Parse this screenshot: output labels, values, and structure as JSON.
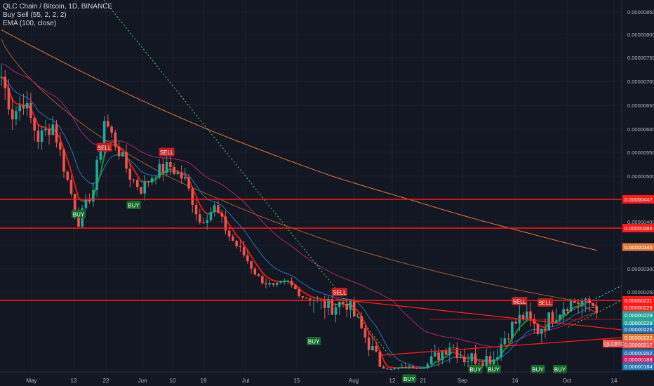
{
  "legend": {
    "symbol_line": "QLC Chain / Bitcoin, 1D, BINANCE",
    "indicator1": "Buy Sell  (55, 2, 2, 2)",
    "indicator2": "EMA (100, close)"
  },
  "colors": {
    "background": "#131722",
    "grid": "#1e222d",
    "up": "#26a69a",
    "down": "#ef5350",
    "hline": "#ff1a1a",
    "ema100": "#e0793a",
    "ema_mid": "#a6266f",
    "ema_fast": "#2376b5",
    "signal_red": "#d01a1a",
    "signal_green": "#1a8a2a",
    "dotted_green": "#3fbf4f",
    "dotted_cyan": "#4fc3f7",
    "axis_text": "#b2b5be"
  },
  "chart_data": {
    "type": "candlestick",
    "title": "QLC Chain / Bitcoin, 1D, BINANCE",
    "x_axis_labels": [
      "May",
      "13",
      "22",
      "Jun",
      "10",
      "19",
      "Jul",
      "15",
      "Aug",
      "12",
      "21",
      "Sep",
      "16",
      "Oct",
      "14"
    ],
    "y_ticks": [
      "0.00000850",
      "0.00000800",
      "0.00000750",
      "0.00000700",
      "0.00000650",
      "0.00000600",
      "0.00000550",
      "0.00000500",
      "0.00000400",
      "0.00000350",
      "0.00000300",
      "0.00000250"
    ],
    "y_tick_values": [
      8.5e-06,
      8e-06,
      7.5e-06,
      7e-06,
      6.5e-06,
      6e-06,
      5.5e-06,
      5e-06,
      4e-06,
      3.5e-06,
      3e-06,
      2.5e-06
    ],
    "ylim": [
      1.15e-06,
      9.1e-06
    ],
    "horizontal_levels": [
      {
        "label": "0.00000447",
        "value": 4.47e-06
      },
      {
        "label": "0.00000386",
        "value": 3.86e-06
      },
      {
        "label": "0.00000231",
        "value": 2.31e-06
      }
    ],
    "price_tags": [
      {
        "label": "0.00000346",
        "value": 3.46e-06,
        "color": "#e0793a"
      },
      {
        "label": "0.00000229",
        "value": 2.29e-06,
        "color": "#ff1a1a"
      },
      {
        "label": "0.00000229",
        "value": 2.29e-06,
        "color": "#26a69a"
      },
      {
        "label": "0.00000228",
        "value": 2.28e-06,
        "color": "#26a69a"
      },
      {
        "label": "0.00000225",
        "value": 2.25e-06,
        "color": "#2376b5"
      },
      {
        "label": "0.00000222",
        "value": 2.22e-06,
        "color": "#e0793a"
      },
      {
        "label": "0.00000217",
        "value": 2.17e-06,
        "color": "#ef5350"
      },
      {
        "label": "0.00000202",
        "value": 2.02e-06,
        "color": "#2376b5"
      },
      {
        "label": "0.00000188",
        "value": 1.88e-06,
        "color": "#d81b60"
      },
      {
        "label": "0.00000184",
        "value": 1.84e-06,
        "color": "#2376b5"
      }
    ],
    "ticker_tag": "QLCBTC",
    "signals": [
      {
        "label": "SELL",
        "type": "sell",
        "day": 28,
        "value": 5.4e-06
      },
      {
        "label": "SELL",
        "type": "sell",
        "day": 45,
        "value": 5.3e-06
      },
      {
        "label": "SELL",
        "type": "sell",
        "day": 92,
        "value": 2.3e-06
      },
      {
        "label": "SELL",
        "type": "sell",
        "day": 123,
        "value": 2.05e-05
      },
      {
        "label": "SELL",
        "type": "sell",
        "day": 130,
        "value": 2.09e-05
      },
      {
        "label": "SELL",
        "type": "sell",
        "day": 141,
        "value": 2.235e-06
      },
      {
        "label": "SELL",
        "type": "sell",
        "day": 148,
        "value": 2.225e-06
      },
      {
        "label": "BUY",
        "type": "buy",
        "day": 21,
        "value": 4.4e-06
      },
      {
        "label": "BUY",
        "type": "buy",
        "day": 36,
        "value": 4.6e-06
      },
      {
        "label": "BUY",
        "type": "buy",
        "day": 85,
        "value": 2.1e-06
      },
      {
        "label": "BUY",
        "type": "buy",
        "day": 111,
        "value": 1.8e-06
      },
      {
        "label": "BUY",
        "type": "buy",
        "day": 129,
        "value": 1.9e-06
      },
      {
        "label": "BUY",
        "type": "buy",
        "day": 134,
        "value": 1.9e-06
      },
      {
        "label": "BUY",
        "type": "buy",
        "day": 146,
        "value": 1.9e-06
      },
      {
        "label": "BUY",
        "type": "buy",
        "day": 152,
        "value": 1.9e-06
      }
    ]
  }
}
